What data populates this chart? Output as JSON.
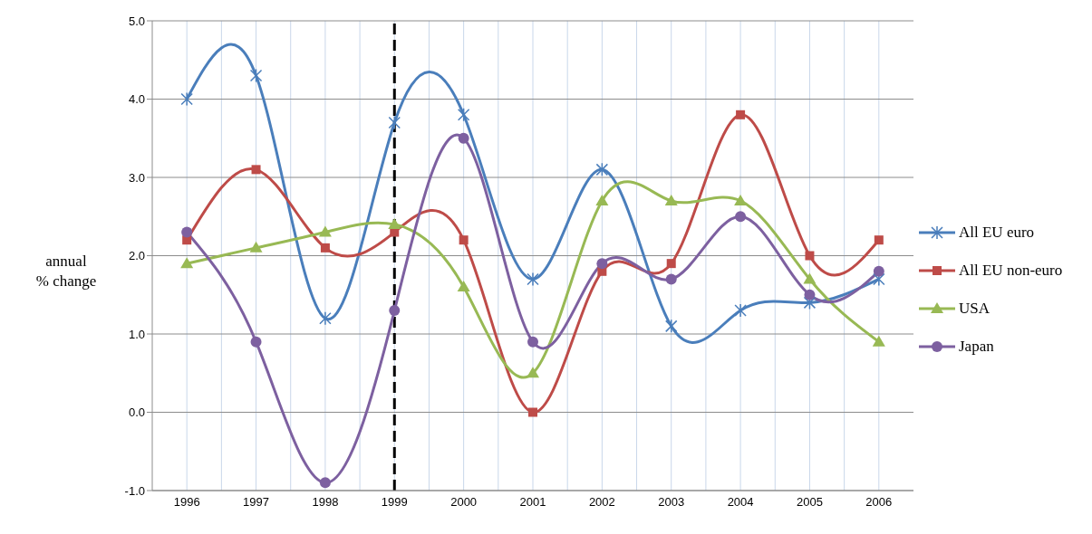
{
  "chart_data": {
    "type": "line",
    "ylabel": "annual\n% change",
    "x": [
      1996,
      1997,
      1998,
      1999,
      2000,
      2001,
      2002,
      2003,
      2004,
      2005,
      2006
    ],
    "series": [
      {
        "name": "All EU euro",
        "color": "#4a7ebb",
        "marker": "cross",
        "values": [
          4.0,
          4.3,
          1.2,
          3.7,
          3.8,
          1.7,
          3.1,
          1.1,
          1.3,
          1.4,
          1.7
        ]
      },
      {
        "name": "All EU non-euro",
        "color": "#be4b48",
        "marker": "square",
        "values": [
          2.2,
          3.1,
          2.1,
          2.3,
          2.2,
          0.0,
          1.8,
          1.9,
          3.8,
          2.0,
          2.2
        ]
      },
      {
        "name": "USA",
        "color": "#98b954",
        "marker": "triangle",
        "values": [
          1.9,
          2.1,
          2.3,
          2.4,
          1.6,
          0.5,
          2.7,
          2.7,
          2.7,
          1.7,
          0.9
        ]
      },
      {
        "name": "Japan",
        "color": "#7d60a0",
        "marker": "circle",
        "values": [
          2.3,
          0.9,
          -0.9,
          1.3,
          3.5,
          0.9,
          1.9,
          1.7,
          2.5,
          1.5,
          1.8
        ]
      }
    ],
    "xlim": [
      1995.5,
      2006.5
    ],
    "xticks": [
      1996,
      {
        "value": 1996.5,
        "label": null
      },
      1997,
      {
        "value": 1997.5,
        "label": null
      },
      1998,
      {
        "value": 1998.5,
        "label": null
      },
      1999,
      {
        "value": 1999.5,
        "label": null
      },
      2000,
      {
        "value": 2000.5,
        "label": null
      },
      2001,
      {
        "value": 2001.5,
        "label": null
      },
      2002,
      {
        "value": 2002.5,
        "label": null
      },
      2003,
      {
        "value": 2003.5,
        "label": null
      },
      2004,
      {
        "value": 2004.5,
        "label": null
      },
      2005,
      {
        "value": 2005.5,
        "label": null
      },
      2006
    ],
    "ylim": [
      -1,
      5
    ],
    "yticks": [
      {
        "value": -1,
        "label": "-1.0"
      },
      {
        "value": 0,
        "label": "0.0"
      },
      {
        "value": 1,
        "label": "1.0"
      },
      {
        "value": 2,
        "label": "2.0"
      },
      {
        "value": 3,
        "label": "3.0"
      },
      {
        "value": 4,
        "label": "4.0"
      },
      {
        "value": 5,
        "label": "5.0"
      }
    ],
    "ref_lines": [
      {
        "axis": "x",
        "value": 1999,
        "color": "#000000",
        "line_style": "dashed"
      }
    ],
    "grid": true,
    "legend": "right",
    "line_style": "solid"
  }
}
